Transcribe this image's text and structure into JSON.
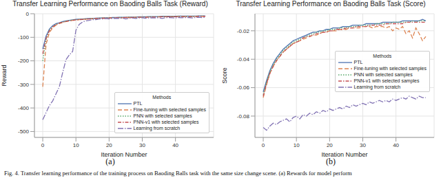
{
  "chart_data": [
    {
      "type": "line",
      "title": "Transfer Learning Performance on Baoding Balls Task (Reward)",
      "x_label": "Iteration Number",
      "y_label": "Reward",
      "annotations": [
        "(a)",
        "Methods"
      ],
      "legend": "lower right",
      "grid": true,
      "x": [
        0,
        1,
        2,
        3,
        4,
        5,
        6,
        7,
        8,
        9,
        10,
        11,
        12,
        13,
        14,
        15,
        16,
        17,
        18,
        19,
        20,
        21,
        22,
        23,
        24,
        25,
        26,
        27,
        28,
        29,
        30,
        31,
        32,
        33,
        34,
        35,
        36,
        37,
        38,
        39,
        40,
        41,
        42,
        43,
        44,
        45,
        46,
        47,
        48,
        49
      ],
      "xlim": [
        -2.5,
        51.5
      ],
      "xticks": [
        0,
        10,
        20,
        30,
        40
      ],
      "ylim": [
        -525,
        0
      ],
      "yticks": [
        -500,
        -400,
        -300,
        -200,
        -100,
        0
      ],
      "series": [
        {
          "name": "PTL",
          "color": "#4c72b0",
          "line_style": "solid",
          "values": [
            -150,
            -95,
            -65,
            -50,
            -42,
            -38,
            -33,
            -30,
            -28,
            -26,
            -24,
            -23,
            -22,
            -21,
            -20,
            -20,
            -19,
            -18,
            -18,
            -17,
            -17,
            -16,
            -16,
            -15,
            -15,
            -15,
            -14,
            -14,
            -14,
            -13,
            -13,
            -13,
            -12,
            -12,
            -12,
            -12,
            -11,
            -11,
            -11,
            -11,
            -11,
            -10,
            -10,
            -10,
            -10,
            -10,
            -10,
            -9,
            -9,
            -9
          ]
        },
        {
          "name": "Fine-tuning with selected samples",
          "color": "#dd8452",
          "line_style": "dashed",
          "values": [
            -310,
            -130,
            -80,
            -60,
            -48,
            -42,
            -37,
            -33,
            -30,
            -28,
            -27,
            -25,
            -24,
            -23,
            -22,
            -21,
            -21,
            -20,
            -19,
            -19,
            -18,
            -18,
            -17,
            -17,
            -17,
            -16,
            -16,
            -16,
            -15,
            -15,
            -15,
            -14,
            -14,
            -14,
            -14,
            -13,
            -13,
            -13,
            -13,
            -13,
            -12,
            -12,
            -12,
            -12,
            -12,
            -12,
            -11,
            -12,
            -11,
            -11
          ]
        },
        {
          "name": "PNN with selected samples",
          "color": "#55a868",
          "line_style": "dotted",
          "values": [
            -200,
            -110,
            -70,
            -55,
            -45,
            -40,
            -35,
            -32,
            -29,
            -27,
            -25,
            -24,
            -23,
            -22,
            -21,
            -20,
            -20,
            -19,
            -18,
            -18,
            -17,
            -17,
            -17,
            -16,
            -16,
            -16,
            -15,
            -15,
            -15,
            -14,
            -14,
            -14,
            -13,
            -13,
            -13,
            -13,
            -12,
            -12,
            -12,
            -12,
            -12,
            -11,
            -11,
            -11,
            -11,
            -11,
            -11,
            -10,
            -10,
            -10
          ]
        },
        {
          "name": "PNN-v1 with selected samples",
          "color": "#c44e52",
          "line_style": "dashdot",
          "values": [
            -170,
            -105,
            -72,
            -56,
            -46,
            -40,
            -36,
            -33,
            -30,
            -28,
            -26,
            -25,
            -24,
            -23,
            -22,
            -21,
            -20,
            -20,
            -19,
            -19,
            -18,
            -18,
            -17,
            -17,
            -17,
            -16,
            -16,
            -16,
            -15,
            -15,
            -15,
            -15,
            -14,
            -14,
            -14,
            -14,
            -13,
            -13,
            -13,
            -13,
            -13,
            -12,
            -12,
            -12,
            -12,
            -12,
            -12,
            -11,
            -11,
            -11
          ]
        },
        {
          "name": "Learning from scratch",
          "color": "#8172b3",
          "line_style": "longdashdot",
          "values": [
            -450,
            -420,
            -390,
            -370,
            -340,
            -310,
            -250,
            -195,
            -175,
            -160,
            -70,
            -45,
            -35,
            -30,
            -28,
            -25,
            -25,
            -22,
            -22,
            -20,
            -22,
            -20,
            -19,
            -20,
            -18,
            -22,
            -19,
            -18,
            -20,
            -18,
            -17,
            -19,
            -18,
            -17,
            -18,
            -17,
            -20,
            -17,
            -16,
            -17,
            -18,
            -16,
            -17,
            -16,
            -16,
            -18,
            -16,
            -15,
            -16,
            -15
          ]
        }
      ]
    },
    {
      "type": "line",
      "title": "Transfer Learning Performance on Baoding Balls Task (Score)",
      "x_label": "Iteration Number",
      "y_label": "Score",
      "annotations": [
        "(b)",
        "Methods"
      ],
      "legend": "center right",
      "grid": true,
      "x": [
        0,
        1,
        2,
        3,
        4,
        5,
        6,
        7,
        8,
        9,
        10,
        11,
        12,
        13,
        14,
        15,
        16,
        17,
        18,
        19,
        20,
        21,
        22,
        23,
        24,
        25,
        26,
        27,
        28,
        29,
        30,
        31,
        32,
        33,
        34,
        35,
        36,
        37,
        38,
        39,
        40,
        41,
        42,
        43,
        44,
        45,
        46,
        47,
        48,
        49
      ],
      "xlim": [
        -2.5,
        51.5
      ],
      "xticks": [
        0,
        10,
        20,
        30,
        40
      ],
      "ylim": [
        -0.095,
        -0.008
      ],
      "yticks": [
        -0.08,
        -0.06,
        -0.04,
        -0.02
      ],
      "series": [
        {
          "name": "PTL",
          "color": "#4c72b0",
          "line_style": "solid",
          "values": [
            -0.063,
            -0.055,
            -0.048,
            -0.043,
            -0.039,
            -0.036,
            -0.033,
            -0.031,
            -0.029,
            -0.027,
            -0.026,
            -0.025,
            -0.024,
            -0.023,
            -0.022,
            -0.021,
            -0.021,
            -0.02,
            -0.02,
            -0.019,
            -0.019,
            -0.018,
            -0.018,
            -0.018,
            -0.017,
            -0.017,
            -0.017,
            -0.016,
            -0.016,
            -0.016,
            -0.016,
            -0.015,
            -0.015,
            -0.015,
            -0.015,
            -0.015,
            -0.014,
            -0.014,
            -0.014,
            -0.014,
            -0.014,
            -0.014,
            -0.013,
            -0.013,
            -0.013,
            -0.013,
            -0.013,
            -0.013,
            -0.012,
            -0.013
          ]
        },
        {
          "name": "Fine-tuning with selected samples",
          "color": "#dd8452",
          "line_style": "dashed",
          "values": [
            -0.067,
            -0.058,
            -0.05,
            -0.045,
            -0.041,
            -0.038,
            -0.035,
            -0.033,
            -0.031,
            -0.029,
            -0.028,
            -0.027,
            -0.026,
            -0.025,
            -0.024,
            -0.023,
            -0.023,
            -0.022,
            -0.021,
            -0.021,
            -0.02,
            -0.02,
            -0.02,
            -0.019,
            -0.019,
            -0.019,
            -0.018,
            -0.018,
            -0.018,
            -0.018,
            -0.017,
            -0.017,
            -0.017,
            -0.018,
            -0.017,
            -0.017,
            -0.017,
            -0.018,
            -0.017,
            -0.02,
            -0.018,
            -0.019,
            -0.017,
            -0.022,
            -0.02,
            -0.025,
            -0.018,
            -0.022,
            -0.027,
            -0.024
          ]
        },
        {
          "name": "PNN with selected samples",
          "color": "#55a868",
          "line_style": "dotted",
          "values": [
            -0.065,
            -0.056,
            -0.049,
            -0.044,
            -0.04,
            -0.037,
            -0.034,
            -0.032,
            -0.03,
            -0.028,
            -0.027,
            -0.026,
            -0.025,
            -0.024,
            -0.023,
            -0.022,
            -0.021,
            -0.021,
            -0.02,
            -0.02,
            -0.019,
            -0.019,
            -0.019,
            -0.018,
            -0.018,
            -0.018,
            -0.017,
            -0.017,
            -0.017,
            -0.016,
            -0.016,
            -0.016,
            -0.016,
            -0.016,
            -0.015,
            -0.015,
            -0.015,
            -0.015,
            -0.015,
            -0.014,
            -0.014,
            -0.014,
            -0.014,
            -0.014,
            -0.014,
            -0.013,
            -0.014,
            -0.013,
            -0.013,
            -0.013
          ]
        },
        {
          "name": "PNN-v1 with selected samples",
          "color": "#c44e52",
          "line_style": "dashdot",
          "values": [
            -0.066,
            -0.057,
            -0.05,
            -0.045,
            -0.041,
            -0.038,
            -0.035,
            -0.033,
            -0.031,
            -0.029,
            -0.028,
            -0.027,
            -0.025,
            -0.024,
            -0.024,
            -0.023,
            -0.022,
            -0.022,
            -0.021,
            -0.021,
            -0.02,
            -0.02,
            -0.019,
            -0.019,
            -0.019,
            -0.018,
            -0.018,
            -0.018,
            -0.017,
            -0.017,
            -0.017,
            -0.017,
            -0.016,
            -0.016,
            -0.016,
            -0.016,
            -0.016,
            -0.015,
            -0.015,
            -0.015,
            -0.015,
            -0.015,
            -0.015,
            -0.014,
            -0.014,
            -0.014,
            -0.014,
            -0.014,
            -0.014,
            -0.014
          ]
        },
        {
          "name": "Learning from scratch",
          "color": "#8172b3",
          "line_style": "longdashdot",
          "values": [
            -0.088,
            -0.09,
            -0.087,
            -0.085,
            -0.086,
            -0.084,
            -0.083,
            -0.082,
            -0.084,
            -0.081,
            -0.08,
            -0.082,
            -0.079,
            -0.08,
            -0.078,
            -0.079,
            -0.077,
            -0.078,
            -0.076,
            -0.077,
            -0.075,
            -0.076,
            -0.075,
            -0.074,
            -0.075,
            -0.073,
            -0.074,
            -0.072,
            -0.073,
            -0.072,
            -0.071,
            -0.072,
            -0.07,
            -0.071,
            -0.07,
            -0.069,
            -0.07,
            -0.069,
            -0.07,
            -0.068,
            -0.069,
            -0.068,
            -0.067,
            -0.068,
            -0.066,
            -0.067,
            -0.068,
            -0.066,
            -0.067,
            -0.067
          ]
        }
      ]
    }
  ],
  "caption": "Fig. 4. Transfer learning performance of the training process on Baoding Balls task with the same size change scene. (a) Rewards for model perform"
}
